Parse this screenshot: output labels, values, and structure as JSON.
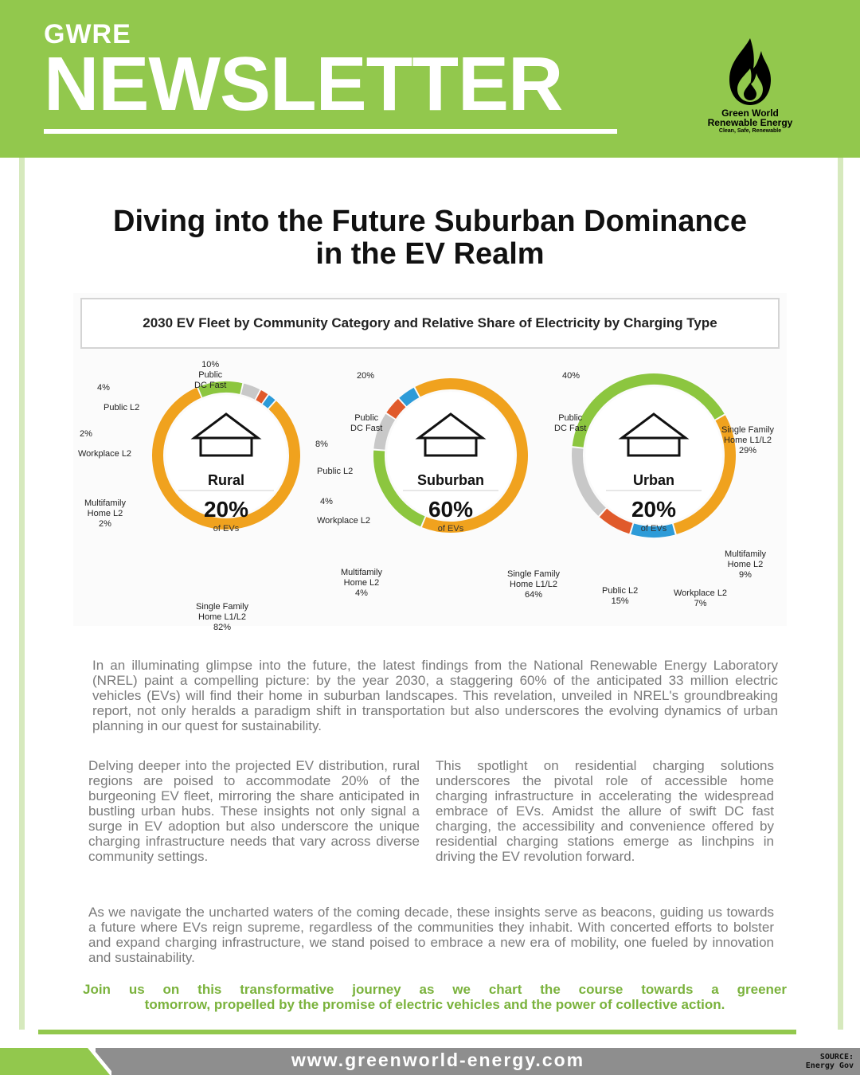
{
  "header": {
    "brand": "GWRE",
    "title": "NEWSLETTER",
    "logo_name_line1": "Green World",
    "logo_name_line2": "Renewable Energy",
    "logo_tagline": "Clean, Safe, Renewable",
    "colors": {
      "brand_green": "#92c84d",
      "accent_text_green": "#7ab23c"
    }
  },
  "article": {
    "title_line1": "Diving into the Future Suburban Dominance",
    "title_line2": "in the EV Realm"
  },
  "figure": {
    "title": "2030 EV Fleet by Community Category and Relative Share of Electricity by Charging Type",
    "of_evs_label": "of EVs",
    "communities": [
      {
        "name": "Rural",
        "share": "20%",
        "segments": [
          {
            "label_l1": "Single Family",
            "label_l2": "Home L1/L2",
            "value": "82%",
            "icon": "house-icon",
            "color": "#f0a21e"
          },
          {
            "label_l1": "Public",
            "label_l2": "DC Fast",
            "value": "10%",
            "icon": "fast-charger-icon",
            "color": "#8cc63f"
          },
          {
            "label_l1": "Public L2",
            "label_l2": "",
            "value": "4%",
            "icon": "charging-station-icon",
            "color": "#c8c8c8"
          },
          {
            "label_l1": "Workplace L2",
            "label_l2": "",
            "value": "2%",
            "icon": "office-building-icon",
            "color": "#e05a2b"
          },
          {
            "label_l1": "Multifamily",
            "label_l2": "Home L2",
            "value": "2%",
            "icon": "apartment-icon",
            "color": "#2d9bd8"
          }
        ]
      },
      {
        "name": "Suburban",
        "share": "60%",
        "segments": [
          {
            "label_l1": "Single Family",
            "label_l2": "Home L1/L2",
            "value": "64%",
            "icon": "house-icon",
            "color": "#f0a21e"
          },
          {
            "label_l1": "Public",
            "label_l2": "DC Fast",
            "value": "20%",
            "icon": "fast-charger-icon",
            "color": "#8cc63f"
          },
          {
            "label_l1": "Public L2",
            "label_l2": "",
            "value": "8%",
            "icon": "charging-station-icon",
            "color": "#c8c8c8"
          },
          {
            "label_l1": "Workplace L2",
            "label_l2": "",
            "value": "4%",
            "icon": "office-building-icon",
            "color": "#e05a2b"
          },
          {
            "label_l1": "Multifamily",
            "label_l2": "Home L2",
            "value": "4%",
            "icon": "apartment-icon",
            "color": "#2d9bd8"
          }
        ]
      },
      {
        "name": "Urban",
        "share": "20%",
        "segments": [
          {
            "label_l1": "Public",
            "label_l2": "DC Fast",
            "value": "40%",
            "icon": "fast-charger-icon",
            "color": "#8cc63f"
          },
          {
            "label_l1": "Single Family",
            "label_l2": "Home L1/L2",
            "value": "29%",
            "icon": "house-icon",
            "color": "#f0a21e"
          },
          {
            "label_l1": "Multifamily",
            "label_l2": "Home L2",
            "value": "9%",
            "icon": "apartment-icon",
            "color": "#2d9bd8"
          },
          {
            "label_l1": "Workplace L2",
            "label_l2": "",
            "value": "7%",
            "icon": "office-building-icon",
            "color": "#e05a2b"
          },
          {
            "label_l1": "Public L2",
            "label_l2": "",
            "value": "15%",
            "icon": "charging-station-icon",
            "color": "#c8c8c8"
          }
        ]
      }
    ]
  },
  "chart_data": [
    {
      "type": "pie",
      "title": "Rural",
      "share_of_evs": 20,
      "categories": [
        "Single Family Home L1/L2",
        "Public DC Fast",
        "Public L2",
        "Workplace L2",
        "Multifamily Home L2"
      ],
      "values": [
        82,
        10,
        4,
        2,
        2
      ]
    },
    {
      "type": "pie",
      "title": "Suburban",
      "share_of_evs": 60,
      "categories": [
        "Single Family Home L1/L2",
        "Public DC Fast",
        "Public L2",
        "Workplace L2",
        "Multifamily Home L2"
      ],
      "values": [
        64,
        20,
        8,
        4,
        4
      ]
    },
    {
      "type": "pie",
      "title": "Urban",
      "share_of_evs": 20,
      "categories": [
        "Public DC Fast",
        "Single Family Home L1/L2",
        "Multifamily Home L2",
        "Workplace L2",
        "Public L2"
      ],
      "values": [
        40,
        29,
        9,
        7,
        15
      ]
    }
  ],
  "body": {
    "intro": "In an illuminating glimpse into the future, the latest findings from the National Renewable Energy Laboratory (NREL) paint a compelling picture: by the year 2030, a staggering 60% of the anticipated 33 million electric vehicles (EVs) will find their home in suburban landscapes. This revelation, unveiled in NREL's groundbreaking report, not only heralds a paradigm shift in transportation but also underscores the evolving dynamics of urban planning in our quest for sustainability.",
    "col_left": "Delving deeper into the projected EV distribution, rural regions are poised to accommodate 20% of the burgeoning EV fleet, mirroring the share anticipated in bustling urban hubs. These insights not only signal a surge in EV adoption but also underscore the unique charging infrastructure needs that vary across diverse community settings.",
    "col_right": "This spotlight on residential charging solutions underscores the pivotal role of accessible home charging infrastructure in accelerating the widespread embrace of EVs. Amidst the allure of swift DC fast charging, the accessibility and convenience offered by residential charging stations emerge as linchpins in driving the EV revolution forward.",
    "closing": "As we navigate the uncharted waters of the coming decade, these insights serve as beacons, guiding us towards a future where EVs reign supreme, regardless of the communities they inhabit. With concerted efforts to bolster and expand charging infrastructure, we stand poised to embrace a new era of mobility, one fueled by innovation and sustainability.",
    "cta_line1": "Join us on this transformative journey as we chart the course towards a greener",
    "cta_line2": "tomorrow, propelled by the promise of electric vehicles and the power of collective action."
  },
  "footer": {
    "website": "www.greenworld-energy.com",
    "source_label": "SOURCE:",
    "source_value": "Energy Gov"
  }
}
